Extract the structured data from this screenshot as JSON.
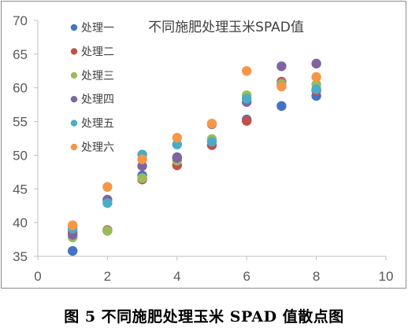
{
  "chart_data": {
    "type": "scatter",
    "title": "不同施肥处理玉米SPAD值",
    "xlabel": "",
    "ylabel": "",
    "xlim": [
      0,
      10
    ],
    "ylim": [
      35,
      70
    ],
    "x_ticks": [
      0,
      2,
      4,
      6,
      8,
      10
    ],
    "y_ticks": [
      35,
      40,
      45,
      50,
      55,
      60,
      65,
      70
    ],
    "grid": false,
    "legend_position": "top-left",
    "series": [
      {
        "name": "处理一",
        "color": "#4472c4",
        "points": [
          [
            1,
            35.8
          ],
          [
            2,
            38.8
          ],
          [
            3,
            47.0
          ],
          [
            4,
            49.7
          ],
          [
            5,
            52.1
          ],
          [
            6,
            55.3
          ],
          [
            7,
            57.3
          ],
          [
            8,
            58.8
          ]
        ]
      },
      {
        "name": "处理二",
        "color": "#c0504d",
        "points": [
          [
            1,
            38.6
          ],
          [
            2,
            38.9
          ],
          [
            3,
            46.4
          ],
          [
            4,
            48.5
          ],
          [
            5,
            51.5
          ],
          [
            6,
            55.1
          ],
          [
            7,
            60.9
          ],
          [
            8,
            59.6
          ]
        ]
      },
      {
        "name": "处理三",
        "color": "#9bbb59",
        "points": [
          [
            1,
            37.8
          ],
          [
            2,
            38.8
          ],
          [
            3,
            46.6
          ],
          [
            4,
            49.2
          ],
          [
            5,
            52.4
          ],
          [
            6,
            58.9
          ],
          [
            7,
            60.6
          ],
          [
            8,
            60.5
          ]
        ]
      },
      {
        "name": "处理四",
        "color": "#8064a2",
        "points": [
          [
            1,
            38.2
          ],
          [
            2,
            43.4
          ],
          [
            3,
            48.4
          ],
          [
            4,
            49.6
          ],
          [
            5,
            54.6
          ],
          [
            6,
            57.9
          ],
          [
            7,
            63.2
          ],
          [
            8,
            63.6
          ]
        ]
      },
      {
        "name": "处理五",
        "color": "#4bacc6",
        "points": [
          [
            1,
            39.1
          ],
          [
            2,
            42.9
          ],
          [
            3,
            50.1
          ],
          [
            4,
            51.6
          ],
          [
            5,
            52.0
          ],
          [
            6,
            58.4
          ],
          [
            7,
            60.3
          ],
          [
            8,
            59.8
          ]
        ]
      },
      {
        "name": "处理六",
        "color": "#f79646",
        "points": [
          [
            1,
            39.6
          ],
          [
            2,
            45.3
          ],
          [
            3,
            49.4
          ],
          [
            4,
            52.6
          ],
          [
            5,
            54.7
          ],
          [
            6,
            62.5
          ],
          [
            7,
            60.2
          ],
          [
            8,
            61.6
          ]
        ]
      }
    ]
  },
  "caption": "图 5  不同施肥处理玉米 SPAD 值散点图"
}
